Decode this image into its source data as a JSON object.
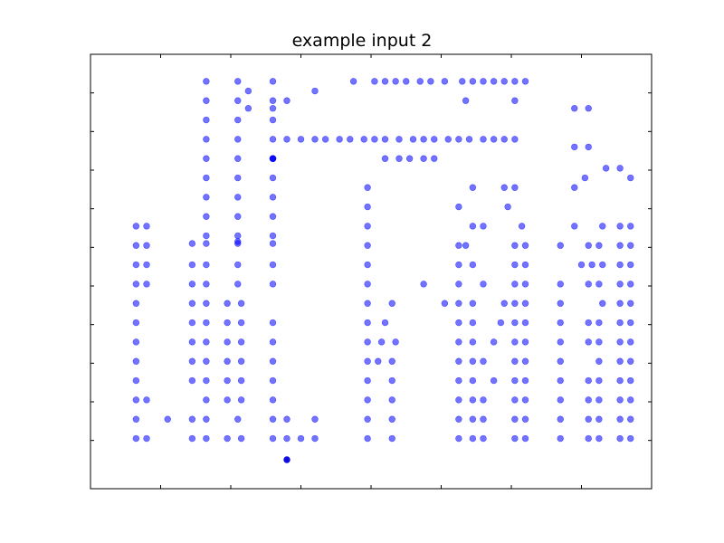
{
  "chart_data": {
    "type": "scatter",
    "title": "example input 2",
    "xlabel": "",
    "ylabel": "",
    "xlim": [
      -1,
      15
    ],
    "ylim": [
      -1.5,
      21
    ],
    "x_tick_values": [
      1,
      3,
      5,
      7,
      9,
      11,
      13
    ],
    "y_tick_values": [
      1,
      3,
      5,
      7,
      9,
      11,
      13,
      15,
      17,
      19
    ],
    "tick_labels_visible": false,
    "grid": false,
    "point_color": "#0000ff",
    "highlight_color": "#0000dd",
    "point_opacity": 0.55,
    "points": [
      [
        2.3,
        19.6
      ],
      [
        3.2,
        19.6
      ],
      [
        4.2,
        19.6
      ],
      [
        6.5,
        19.6
      ],
      [
        7.1,
        19.6
      ],
      [
        7.4,
        19.6
      ],
      [
        7.7,
        19.6
      ],
      [
        8.0,
        19.6
      ],
      [
        8.4,
        19.6
      ],
      [
        8.7,
        19.6
      ],
      [
        9.1,
        19.6
      ],
      [
        9.6,
        19.6
      ],
      [
        9.9,
        19.6
      ],
      [
        10.2,
        19.6
      ],
      [
        10.5,
        19.6
      ],
      [
        10.8,
        19.6
      ],
      [
        11.1,
        19.6
      ],
      [
        11.4,
        19.6
      ],
      [
        3.5,
        19.1
      ],
      [
        5.4,
        19.1
      ],
      [
        2.3,
        18.6
      ],
      [
        3.2,
        18.6
      ],
      [
        4.2,
        18.6
      ],
      [
        4.6,
        18.6
      ],
      [
        9.7,
        18.6
      ],
      [
        11.1,
        18.6
      ],
      [
        3.5,
        18.2
      ],
      [
        4.2,
        18.2
      ],
      [
        12.8,
        18.2
      ],
      [
        13.2,
        18.2
      ],
      [
        2.3,
        17.6
      ],
      [
        3.2,
        17.6
      ],
      [
        4.2,
        17.6
      ],
      [
        2.3,
        16.6
      ],
      [
        3.2,
        16.6
      ],
      [
        4.2,
        16.6
      ],
      [
        4.6,
        16.6
      ],
      [
        5.0,
        16.6
      ],
      [
        5.4,
        16.6
      ],
      [
        5.7,
        16.6
      ],
      [
        6.1,
        16.6
      ],
      [
        6.4,
        16.6
      ],
      [
        6.8,
        16.6
      ],
      [
        7.1,
        16.6
      ],
      [
        7.4,
        16.6
      ],
      [
        7.8,
        16.6
      ],
      [
        8.2,
        16.6
      ],
      [
        8.5,
        16.6
      ],
      [
        8.8,
        16.6
      ],
      [
        9.2,
        16.6
      ],
      [
        9.5,
        16.6
      ],
      [
        9.8,
        16.6
      ],
      [
        10.2,
        16.6
      ],
      [
        10.5,
        16.6
      ],
      [
        10.8,
        16.6
      ],
      [
        11.1,
        16.6
      ],
      [
        12.8,
        16.2
      ],
      [
        13.2,
        16.2
      ],
      [
        2.3,
        15.6
      ],
      [
        3.2,
        15.6
      ],
      [
        4.2,
        15.6
      ],
      [
        4.2,
        15.6
      ],
      [
        4.2,
        15.6
      ],
      [
        4.2,
        15.6
      ],
      [
        7.4,
        15.6
      ],
      [
        7.8,
        15.6
      ],
      [
        8.1,
        15.6
      ],
      [
        8.5,
        15.6
      ],
      [
        8.8,
        15.6
      ],
      [
        13.7,
        15.1
      ],
      [
        14.1,
        15.1
      ],
      [
        2.3,
        14.6
      ],
      [
        3.2,
        14.6
      ],
      [
        4.2,
        14.6
      ],
      [
        13.1,
        14.6
      ],
      [
        14.4,
        14.6
      ],
      [
        2.3,
        13.6
      ],
      [
        3.2,
        13.6
      ],
      [
        4.2,
        13.6
      ],
      [
        6.9,
        14.1
      ],
      [
        9.9,
        14.1
      ],
      [
        10.8,
        14.1
      ],
      [
        11.1,
        14.1
      ],
      [
        12.8,
        14.1
      ],
      [
        2.3,
        12.6
      ],
      [
        3.2,
        12.6
      ],
      [
        4.2,
        12.6
      ],
      [
        6.9,
        13.1
      ],
      [
        9.5,
        13.1
      ],
      [
        10.9,
        13.1
      ],
      [
        2.3,
        11.6
      ],
      [
        3.2,
        11.6
      ],
      [
        4.2,
        11.6
      ],
      [
        6.9,
        12.1
      ],
      [
        9.9,
        12.1
      ],
      [
        10.2,
        12.1
      ],
      [
        11.3,
        12.1
      ],
      [
        12.8,
        12.1
      ],
      [
        0.3,
        12.1
      ],
      [
        0.6,
        12.1
      ],
      [
        3.2,
        11.3
      ],
      [
        13.6,
        12.1
      ],
      [
        14.1,
        12.1
      ],
      [
        14.4,
        12.1
      ],
      [
        0.3,
        11.1
      ],
      [
        0.6,
        11.1
      ],
      [
        1.9,
        11.2
      ],
      [
        2.3,
        11.2
      ],
      [
        3.2,
        11.2
      ],
      [
        4.2,
        11.2
      ],
      [
        6.9,
        11.1
      ],
      [
        9.5,
        11.1
      ],
      [
        9.7,
        11.1
      ],
      [
        11.1,
        11.1
      ],
      [
        11.4,
        11.1
      ],
      [
        12.4,
        11.1
      ],
      [
        13.2,
        11.1
      ],
      [
        13.5,
        11.1
      ],
      [
        14.1,
        11.1
      ],
      [
        14.4,
        11.1
      ],
      [
        0.3,
        10.1
      ],
      [
        0.6,
        10.1
      ],
      [
        1.9,
        10.1
      ],
      [
        2.3,
        10.1
      ],
      [
        3.2,
        10.1
      ],
      [
        4.2,
        10.1
      ],
      [
        6.9,
        10.1
      ],
      [
        9.5,
        10.1
      ],
      [
        9.9,
        10.1
      ],
      [
        11.1,
        10.1
      ],
      [
        11.4,
        10.1
      ],
      [
        13.0,
        10.1
      ],
      [
        13.3,
        10.1
      ],
      [
        13.6,
        10.1
      ],
      [
        14.1,
        10.1
      ],
      [
        14.4,
        10.1
      ],
      [
        0.3,
        9.1
      ],
      [
        0.6,
        9.1
      ],
      [
        1.9,
        9.1
      ],
      [
        2.3,
        9.1
      ],
      [
        3.2,
        9.1
      ],
      [
        4.2,
        9.1
      ],
      [
        6.9,
        9.1
      ],
      [
        8.5,
        9.1
      ],
      [
        9.5,
        9.1
      ],
      [
        10.2,
        9.1
      ],
      [
        11.1,
        9.1
      ],
      [
        11.4,
        9.1
      ],
      [
        12.4,
        9.1
      ],
      [
        13.2,
        9.1
      ],
      [
        13.5,
        9.1
      ],
      [
        14.1,
        9.1
      ],
      [
        14.4,
        9.1
      ],
      [
        0.3,
        8.1
      ],
      [
        1.9,
        8.1
      ],
      [
        2.3,
        8.1
      ],
      [
        2.9,
        8.1
      ],
      [
        3.3,
        8.1
      ],
      [
        6.9,
        8.1
      ],
      [
        7.6,
        8.1
      ],
      [
        9.1,
        8.1
      ],
      [
        9.5,
        8.1
      ],
      [
        9.9,
        8.1
      ],
      [
        10.8,
        8.1
      ],
      [
        11.1,
        8.1
      ],
      [
        11.4,
        8.1
      ],
      [
        12.4,
        8.1
      ],
      [
        13.6,
        8.1
      ],
      [
        14.1,
        8.1
      ],
      [
        14.4,
        8.1
      ],
      [
        0.3,
        7.1
      ],
      [
        1.9,
        7.1
      ],
      [
        2.3,
        7.1
      ],
      [
        2.9,
        7.1
      ],
      [
        3.3,
        7.1
      ],
      [
        4.2,
        7.1
      ],
      [
        6.9,
        7.1
      ],
      [
        7.4,
        7.1
      ],
      [
        9.5,
        7.1
      ],
      [
        9.9,
        7.1
      ],
      [
        10.7,
        7.1
      ],
      [
        11.1,
        7.1
      ],
      [
        11.4,
        7.1
      ],
      [
        12.4,
        7.1
      ],
      [
        13.2,
        7.1
      ],
      [
        13.5,
        7.1
      ],
      [
        14.1,
        7.1
      ],
      [
        14.4,
        7.1
      ],
      [
        0.3,
        6.1
      ],
      [
        1.9,
        6.1
      ],
      [
        2.3,
        6.1
      ],
      [
        2.9,
        6.1
      ],
      [
        3.3,
        6.1
      ],
      [
        4.2,
        6.1
      ],
      [
        6.9,
        6.1
      ],
      [
        7.3,
        6.1
      ],
      [
        7.7,
        6.1
      ],
      [
        9.5,
        6.1
      ],
      [
        9.9,
        6.1
      ],
      [
        10.5,
        6.1
      ],
      [
        11.1,
        6.1
      ],
      [
        11.4,
        6.1
      ],
      [
        12.4,
        6.1
      ],
      [
        13.2,
        6.1
      ],
      [
        13.5,
        6.1
      ],
      [
        14.1,
        6.1
      ],
      [
        14.4,
        6.1
      ],
      [
        0.3,
        5.1
      ],
      [
        1.9,
        5.1
      ],
      [
        2.3,
        5.1
      ],
      [
        2.9,
        5.1
      ],
      [
        3.3,
        5.1
      ],
      [
        4.2,
        5.1
      ],
      [
        6.9,
        5.1
      ],
      [
        7.2,
        5.1
      ],
      [
        7.6,
        5.1
      ],
      [
        9.5,
        5.1
      ],
      [
        9.9,
        5.1
      ],
      [
        10.2,
        5.1
      ],
      [
        11.1,
        5.1
      ],
      [
        11.4,
        5.1
      ],
      [
        12.4,
        5.1
      ],
      [
        13.5,
        5.1
      ],
      [
        14.1,
        5.1
      ],
      [
        14.4,
        5.1
      ],
      [
        0.3,
        4.1
      ],
      [
        1.9,
        4.1
      ],
      [
        2.3,
        4.1
      ],
      [
        2.9,
        4.1
      ],
      [
        3.3,
        4.1
      ],
      [
        4.2,
        4.1
      ],
      [
        6.9,
        4.1
      ],
      [
        7.6,
        4.1
      ],
      [
        9.5,
        4.1
      ],
      [
        9.9,
        4.1
      ],
      [
        10.5,
        4.1
      ],
      [
        11.1,
        4.1
      ],
      [
        11.4,
        4.1
      ],
      [
        12.4,
        4.1
      ],
      [
        13.2,
        4.1
      ],
      [
        13.5,
        4.1
      ],
      [
        14.1,
        4.1
      ],
      [
        14.4,
        4.1
      ],
      [
        0.3,
        3.1
      ],
      [
        0.6,
        3.1
      ],
      [
        2.3,
        3.1
      ],
      [
        2.9,
        3.1
      ],
      [
        3.3,
        3.1
      ],
      [
        4.2,
        3.1
      ],
      [
        6.9,
        3.1
      ],
      [
        7.6,
        3.1
      ],
      [
        9.5,
        3.1
      ],
      [
        9.9,
        3.1
      ],
      [
        10.2,
        3.1
      ],
      [
        11.1,
        3.1
      ],
      [
        11.4,
        3.1
      ],
      [
        12.4,
        3.1
      ],
      [
        13.2,
        3.1
      ],
      [
        13.5,
        3.1
      ],
      [
        14.1,
        3.1
      ],
      [
        14.4,
        3.1
      ],
      [
        0.3,
        2.1
      ],
      [
        1.2,
        2.1
      ],
      [
        1.9,
        2.1
      ],
      [
        2.3,
        2.1
      ],
      [
        3.2,
        2.1
      ],
      [
        4.2,
        2.1
      ],
      [
        4.6,
        2.1
      ],
      [
        5.4,
        2.1
      ],
      [
        6.9,
        2.1
      ],
      [
        7.6,
        2.1
      ],
      [
        9.5,
        2.1
      ],
      [
        9.9,
        2.1
      ],
      [
        10.2,
        2.1
      ],
      [
        11.1,
        2.1
      ],
      [
        11.4,
        2.1
      ],
      [
        12.4,
        2.1
      ],
      [
        13.2,
        2.1
      ],
      [
        13.5,
        2.1
      ],
      [
        14.1,
        2.1
      ],
      [
        14.4,
        2.1
      ],
      [
        0.3,
        1.1
      ],
      [
        0.6,
        1.1
      ],
      [
        1.9,
        1.1
      ],
      [
        2.3,
        1.1
      ],
      [
        2.9,
        1.1
      ],
      [
        3.3,
        1.1
      ],
      [
        4.2,
        1.1
      ],
      [
        4.6,
        1.1
      ],
      [
        5.0,
        1.1
      ],
      [
        5.4,
        1.1
      ],
      [
        6.9,
        1.1
      ],
      [
        7.6,
        1.1
      ],
      [
        9.5,
        1.1
      ],
      [
        9.9,
        1.1
      ],
      [
        10.2,
        1.1
      ],
      [
        11.1,
        1.1
      ],
      [
        11.4,
        1.1
      ],
      [
        12.4,
        1.1
      ],
      [
        13.2,
        1.1
      ],
      [
        13.5,
        1.1
      ],
      [
        14.1,
        1.1
      ],
      [
        14.4,
        1.1
      ]
    ],
    "highlighted_points": [
      [
        4.6,
        0.0
      ]
    ]
  }
}
